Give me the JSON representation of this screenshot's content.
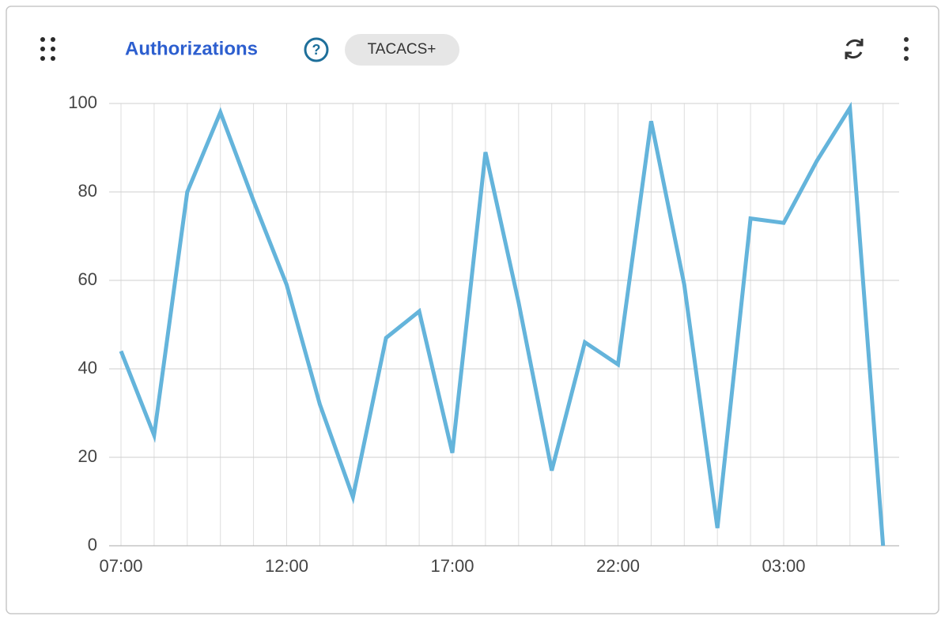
{
  "chart_data": {
    "type": "line",
    "title": "Authorizations",
    "badge": "TACACS+",
    "categories": [
      "07:00",
      null,
      null,
      null,
      null,
      "12:00",
      null,
      null,
      null,
      null,
      "17:00",
      null,
      null,
      null,
      null,
      "22:00",
      null,
      null,
      null,
      null,
      "03:00",
      null,
      null,
      null
    ],
    "values": [
      44,
      25,
      80,
      98,
      78,
      59,
      32,
      11,
      47,
      53,
      21,
      89,
      55,
      17,
      46,
      41,
      96,
      59,
      4,
      74,
      73,
      87,
      99,
      0
    ],
    "color": "#64b4db",
    "ylim": [
      0,
      100
    ],
    "yticks": [
      0,
      20,
      40,
      60,
      80,
      100
    ],
    "grid": true
  }
}
